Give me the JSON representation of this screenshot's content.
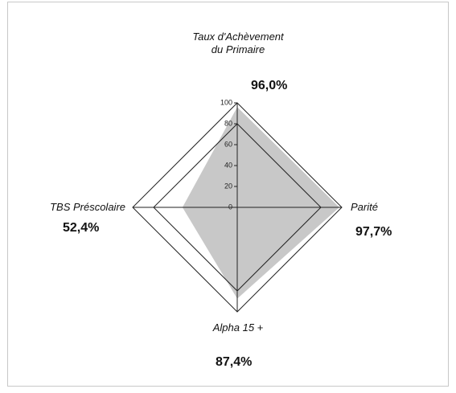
{
  "chart_data": {
    "type": "radar",
    "categories": [
      "Taux d'Achèvement du Primaire",
      "Parité",
      "Alpha 15 +",
      "TBS Préscolaire"
    ],
    "values": [
      96.0,
      97.7,
      87.4,
      52.4
    ],
    "value_labels": [
      "96,0%",
      "97,7%",
      "87,4%",
      "52,4%"
    ],
    "color": "#c8c8c8",
    "ylim": [
      0,
      100
    ],
    "yticks": [
      0,
      20,
      40,
      60,
      80,
      100
    ],
    "grid_rings": [
      80,
      100
    ]
  }
}
